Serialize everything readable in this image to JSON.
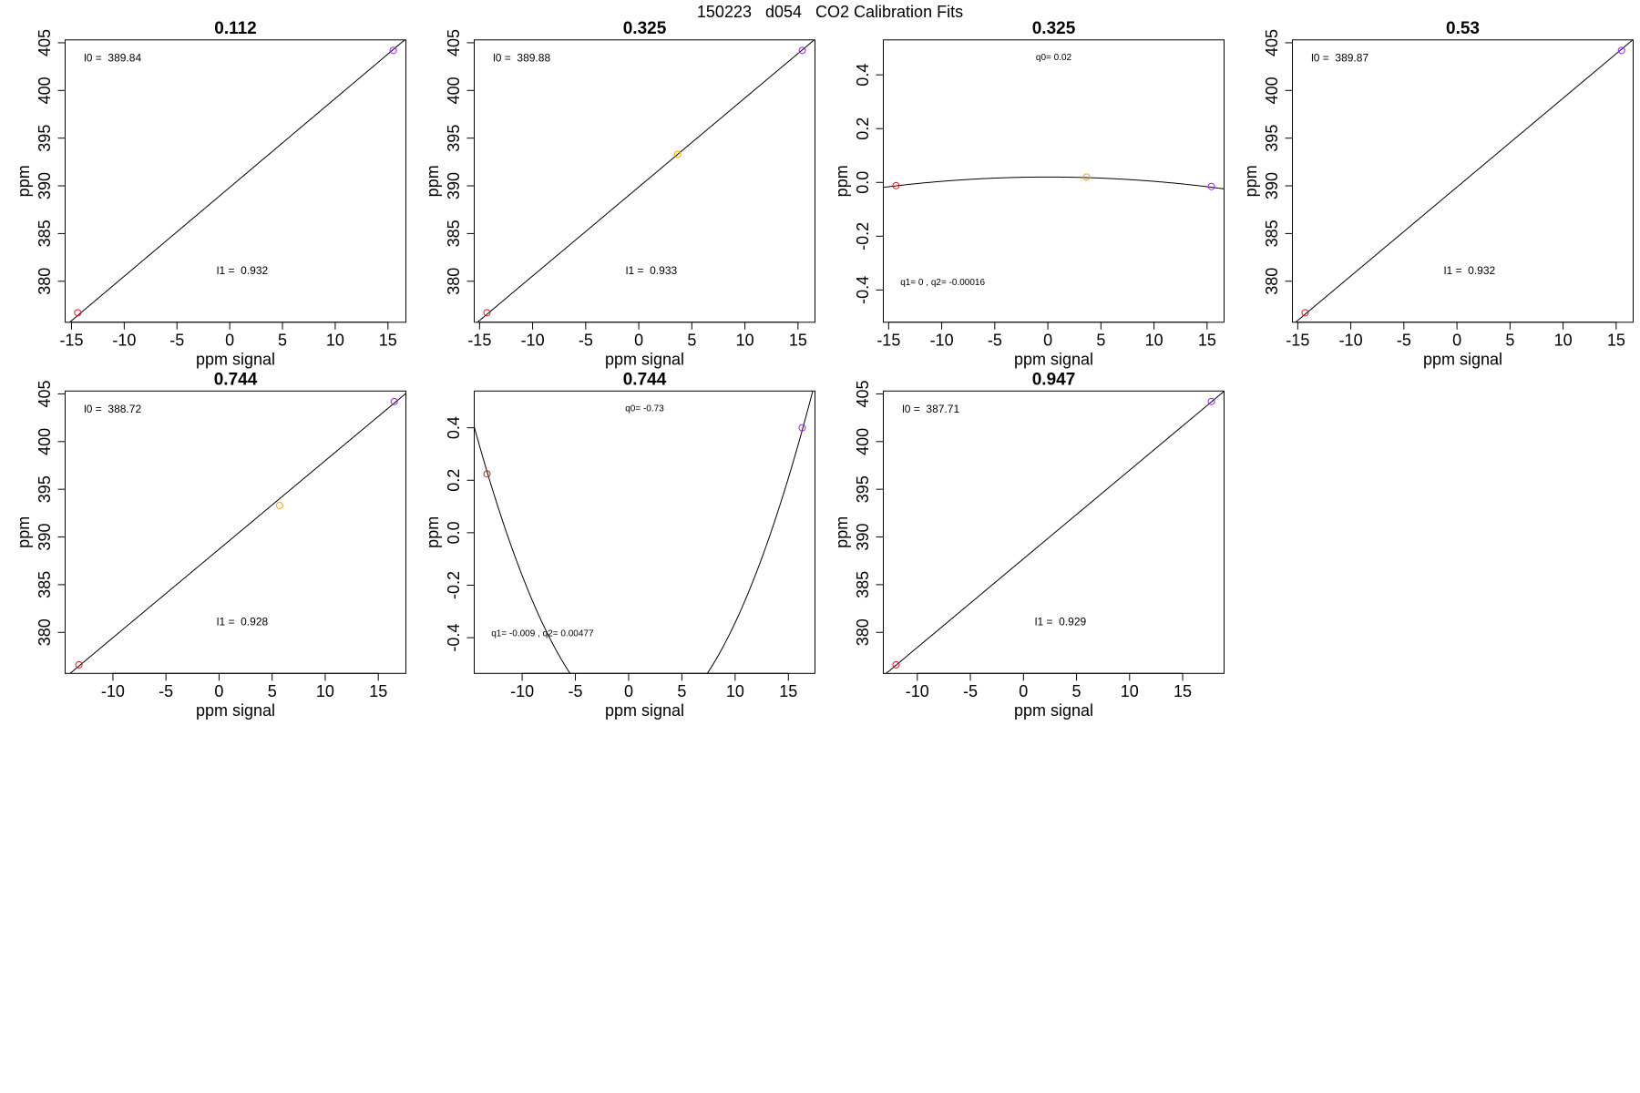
{
  "title": "150223   d054   CO2 Calibration Fits",
  "chart_data": [
    {
      "type": "scatter",
      "title": "0.112",
      "xlabel": "ppm signal",
      "ylabel": "ppm",
      "x": [
        -14.4,
        15.5
      ],
      "values": [
        376.7,
        404.2
      ],
      "colors": [
        "#d62020",
        "#a020f0"
      ],
      "coefs": [
        389.84,
        0.932
      ],
      "coef_labels": [
        "l0 =  389.84",
        "l1 =  0.932"
      ],
      "xlim": [
        -15.6,
        16.7
      ],
      "ylim": [
        375.7,
        405.3
      ],
      "xticks": [
        -15,
        -10,
        -5,
        0,
        5,
        10,
        15
      ],
      "yticks": [
        380,
        385,
        390,
        395,
        400,
        405
      ]
    },
    {
      "type": "scatter",
      "title": "0.325",
      "xlabel": "ppm signal",
      "ylabel": "ppm",
      "x": [
        -14.3,
        3.65,
        15.4
      ],
      "values": [
        376.7,
        393.3,
        404.2
      ],
      "colors": [
        "#d62020",
        "#ffa500",
        "#a020f0"
      ],
      "coefs": [
        389.88,
        0.933
      ],
      "coef_labels": [
        "l0 =  389.88",
        "l1 =  0.933"
      ],
      "xlim": [
        -15.5,
        16.6
      ],
      "ylim": [
        375.7,
        405.3
      ],
      "xticks": [
        -15,
        -10,
        -5,
        0,
        5,
        10,
        15
      ],
      "yticks": [
        380,
        385,
        390,
        395,
        400,
        405
      ]
    },
    {
      "type": "scatter",
      "title": "0.325",
      "xlabel": "ppm signal",
      "ylabel": "ppm",
      "x": [
        -14.3,
        3.64,
        15.4
      ],
      "values": [
        -0.012,
        0.02,
        -0.015
      ],
      "colors": [
        "#d62020",
        "#ffa500",
        "#a020f0"
      ],
      "coefs": [
        0.02,
        0,
        -0.00016
      ],
      "coef_labels": [
        "q0= 0.02",
        "q1= 0 , q2= -0.00016"
      ],
      "xlim": [
        -15.5,
        16.6
      ],
      "ylim": [
        -0.52,
        0.53
      ],
      "xticks": [
        -15,
        -10,
        -5,
        0,
        5,
        10,
        15
      ],
      "yticks": [
        -0.4,
        -0.2,
        {
          "value": 0,
          "label": "0.0"
        },
        0.2,
        0.4
      ]
    },
    {
      "type": "scatter",
      "title": "0.53",
      "xlabel": "ppm signal",
      "ylabel": "ppm",
      "x": [
        -14.3,
        15.5
      ],
      "values": [
        376.7,
        404.2
      ],
      "colors": [
        "#d62020",
        "#a020f0"
      ],
      "coefs": [
        389.87,
        0.932
      ],
      "coef_labels": [
        "l0 =  389.87",
        "l1 =  0.932"
      ],
      "xlim": [
        -15.5,
        16.6
      ],
      "ylim": [
        375.7,
        405.3
      ],
      "xticks": [
        -15,
        -10,
        -5,
        0,
        5,
        10,
        15
      ],
      "yticks": [
        380,
        385,
        390,
        395,
        400,
        405
      ]
    },
    {
      "type": "scatter",
      "title": "0.744",
      "xlabel": "ppm signal",
      "ylabel": "ppm",
      "x": [
        -13.2,
        5.7,
        16.5
      ],
      "values": [
        376.6,
        393.3,
        404.2
      ],
      "colors": [
        "#d62020",
        "#ffa500",
        "#a020f0"
      ],
      "coefs": [
        388.72,
        0.928
      ],
      "coef_labels": [
        "l0 =  388.72",
        "l1 =  0.928"
      ],
      "xlim": [
        -14.5,
        17.6
      ],
      "ylim": [
        375.7,
        405.3
      ],
      "xticks": [
        -10,
        -5,
        0,
        5,
        10,
        15
      ],
      "yticks": [
        380,
        385,
        390,
        395,
        400,
        405
      ]
    },
    {
      "type": "scatter",
      "title": "0.744",
      "xlabel": "ppm signal",
      "ylabel": "ppm",
      "x": [
        -13.3,
        16.3
      ],
      "values": [
        0.224,
        0.4
      ],
      "colors": [
        "#d62020",
        "#a020f0"
      ],
      "coefs": [
        -0.73,
        -0.009,
        0.00477
      ],
      "coef_labels": [
        "q0= -0.73",
        "q1= -0.009 , q2= 0.00477"
      ],
      "xlim": [
        -14.5,
        17.5
      ],
      "ylim": [
        -0.536,
        0.54
      ],
      "xticks": [
        -10,
        -5,
        0,
        5,
        10,
        15
      ],
      "yticks": [
        -0.4,
        -0.2,
        {
          "value": 0,
          "label": "0.0"
        },
        0.2,
        0.4
      ]
    },
    {
      "type": "scatter",
      "title": "0.947",
      "xlabel": "ppm signal",
      "ylabel": "ppm",
      "x": [
        -12.0,
        17.7
      ],
      "values": [
        376.6,
        404.2
      ],
      "colors": [
        "#d62020",
        "#a020f0"
      ],
      "coefs": [
        387.71,
        0.929
      ],
      "coef_labels": [
        "l0 =  387.71",
        "l1 =  0.929"
      ],
      "xlim": [
        -13.2,
        18.9
      ],
      "ylim": [
        375.7,
        405.3
      ],
      "xticks": [
        -10,
        -5,
        0,
        5,
        10,
        15
      ],
      "yticks": [
        380,
        385,
        390,
        395,
        400,
        405
      ]
    }
  ]
}
